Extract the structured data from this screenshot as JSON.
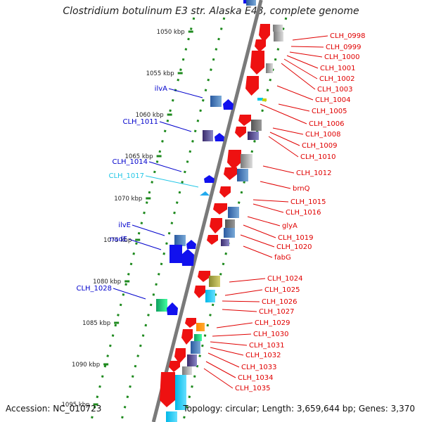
{
  "title": "Clostridium botulinum E3 str. Alaska E43, complete genome",
  "footer": {
    "accession": "Accession: NC_010723",
    "topology": "Topology: circular; Length: 3,659,644 bp; Genes: 3,370"
  },
  "colors": {
    "forward_label": "#0000cc",
    "reverse_label": "#e00000",
    "cyan_label": "#22c6e6",
    "axis": "#7a7a7a",
    "tick_green": "#1e8a1e"
  },
  "kbp_ticks": [
    "1050 kbp",
    "1055 kbp",
    "1060 kbp",
    "1065 kbp",
    "1070 kbp",
    "1075 kbp",
    "1080 kbp",
    "1085 kbp",
    "1090 kbp",
    "1095 kbp"
  ],
  "left_genes": [
    "ilvA",
    "CLH_1011",
    "CLH_1014",
    "CLH_1017",
    "ilvE",
    "nadE",
    "CLH_1028"
  ],
  "right_genes": [
    "CLH_0998",
    "CLH_0999",
    "CLH_1000",
    "CLH_1001",
    "CLH_1002",
    "CLH_1003",
    "CLH_1004",
    "CLH_1005",
    "CLH_1006",
    "CLH_1008",
    "CLH_1009",
    "CLH_1010",
    "CLH_1012",
    "brnQ",
    "CLH_1015",
    "CLH_1016",
    "glyA",
    "CLH_1019",
    "CLH_1020",
    "fabG",
    "CLH_1024",
    "CLH_1025",
    "CLH_1026",
    "CLH_1027",
    "CLH_1029",
    "CLH_1030",
    "CLH_1031",
    "CLH_1032",
    "CLH_1033",
    "CLH_1034",
    "CLH_1035"
  ]
}
